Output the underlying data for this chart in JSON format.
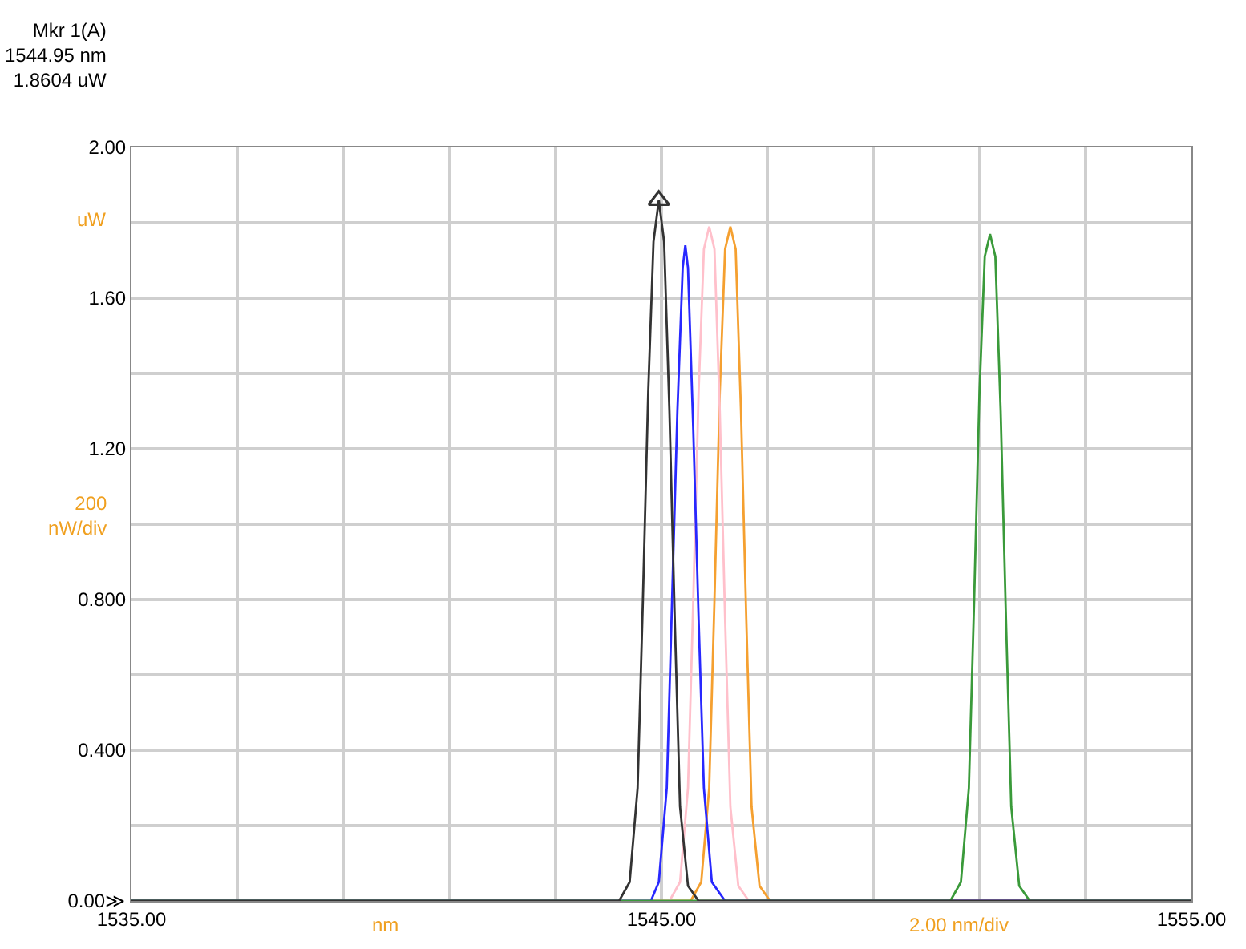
{
  "chart_data": {
    "type": "line",
    "annotations": [
      "Mkr 1(A)\n1544.95 nm\n1.8604 uW",
      "uW",
      "200\nnW/div",
      "nm",
      "2.00 nm/div"
    ],
    "xlim": [
      1535,
      1555
    ],
    "xticks": [
      {
        "value": 1535,
        "label": "1535.00"
      },
      {
        "value": 1537,
        "label": null
      },
      {
        "value": 1539,
        "label": null
      },
      {
        "value": 1541,
        "label": null
      },
      {
        "value": 1543,
        "label": null
      },
      {
        "value": 1545,
        "label": "1545.00"
      },
      {
        "value": 1547,
        "label": null
      },
      {
        "value": 1549,
        "label": null
      },
      {
        "value": 1551,
        "label": null
      },
      {
        "value": 1553,
        "label": null
      },
      {
        "value": 1555,
        "label": "1555.00"
      }
    ],
    "ylim": [
      0,
      2
    ],
    "yticks": [
      {
        "value": 0,
        "label": "0.00≫"
      },
      {
        "value": 0.2,
        "label": null
      },
      {
        "value": 0.4,
        "label": "0.400"
      },
      {
        "value": 0.6,
        "label": null
      },
      {
        "value": 0.8,
        "label": "0.800"
      },
      {
        "value": 1.0,
        "label": null
      },
      {
        "value": 1.2,
        "label": "1.20"
      },
      {
        "value": 1.4,
        "label": null
      },
      {
        "value": 1.6,
        "label": "1.60"
      },
      {
        "value": 1.8,
        "label": null
      },
      {
        "value": 2.0,
        "label": "2.00"
      }
    ],
    "grid": true,
    "marker": "none",
    "line_style": "solid",
    "series": [
      {
        "color": "#f5a030",
        "x": [
          1535,
          1545.55,
          1545.75,
          1545.9,
          1546.0,
          1546.1,
          1546.2,
          1546.3,
          1546.4,
          1546.5,
          1546.6,
          1546.7,
          1546.85,
          1547.05,
          1555
        ],
        "values": [
          0,
          0,
          0.05,
          0.3,
          0.8,
          1.35,
          1.73,
          1.79,
          1.73,
          1.3,
          0.75,
          0.25,
          0.04,
          0,
          0
        ]
      },
      {
        "color": "#ffc0cb",
        "x": [
          1535,
          1545.15,
          1545.35,
          1545.5,
          1545.6,
          1545.7,
          1545.8,
          1545.9,
          1546.0,
          1546.1,
          1546.2,
          1546.3,
          1546.45,
          1546.65,
          1555
        ],
        "values": [
          0,
          0,
          0.05,
          0.3,
          0.8,
          1.35,
          1.73,
          1.79,
          1.73,
          1.3,
          0.75,
          0.25,
          0.04,
          0,
          0
        ]
      },
      {
        "color": "#2828ff",
        "x": [
          1535,
          1544.8,
          1544.95,
          1545.1,
          1545.2,
          1545.3,
          1545.4,
          1545.45,
          1545.5,
          1545.6,
          1545.7,
          1545.8,
          1545.95,
          1546.2,
          1555
        ],
        "values": [
          0,
          0,
          0.05,
          0.3,
          0.8,
          1.3,
          1.68,
          1.74,
          1.68,
          1.25,
          0.75,
          0.3,
          0.05,
          0,
          0
        ]
      },
      {
        "color": "#3a9a3a",
        "x": [
          1535,
          1550.45,
          1550.65,
          1550.8,
          1550.9,
          1551.0,
          1551.1,
          1551.2,
          1551.3,
          1551.4,
          1551.5,
          1551.6,
          1551.75,
          1551.95,
          1555
        ],
        "values": [
          0,
          0,
          0.05,
          0.3,
          0.8,
          1.35,
          1.71,
          1.77,
          1.71,
          1.3,
          0.75,
          0.25,
          0.04,
          0,
          0
        ]
      },
      {
        "color": "#333333",
        "x": [
          1535,
          1544.2,
          1544.4,
          1544.55,
          1544.65,
          1544.75,
          1544.85,
          1544.95,
          1545.05,
          1545.15,
          1545.25,
          1545.35,
          1545.5,
          1545.7,
          1555
        ],
        "values": [
          0,
          0,
          0.05,
          0.3,
          0.8,
          1.35,
          1.75,
          1.86,
          1.75,
          1.3,
          0.75,
          0.25,
          0.04,
          0,
          0
        ]
      },
      {
        "type": "scatter",
        "marker": "triangle",
        "color": "#333333",
        "x": [
          1544.95
        ],
        "values": [
          1.86
        ]
      }
    ]
  }
}
